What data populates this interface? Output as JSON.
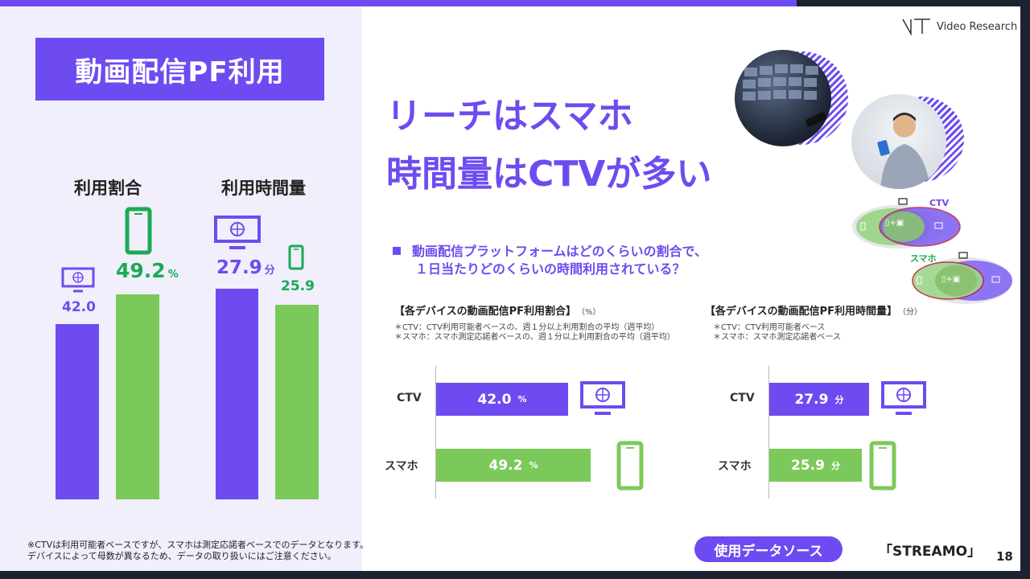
{
  "slide": {
    "title": "動画配信PF利用",
    "logo_text": "Video Research",
    "headline_line1": "リーチはスマホ",
    "headline_line2": "時間量はCTVが多い",
    "page_number": "18"
  },
  "left_chart": {
    "title_usage": "利用割合",
    "title_time": "利用時間量",
    "ctv_rate": "42.0",
    "smartphone_rate": "49.2",
    "rate_unit": "%",
    "ctv_minutes": "27.9",
    "minutes_unit": "分",
    "smartphone_minutes": "25.9"
  },
  "question": {
    "line1": "動画配信プラットフォームはどのくらいの割合で、",
    "line2": "１日当たりどのくらいの時間利用されている？"
  },
  "venn": {
    "ctv_label": "CTV",
    "smartphone_label": "スマホ",
    "overlap_label": "▯+▣"
  },
  "chart_data": [
    {
      "type": "bar",
      "title": "【各デバイスの動画配信PF利用割合】",
      "unit_note": "（%）",
      "notes": [
        "＊CTV：CTV利用可能者ベースの、週１分以上利用割合の平均（週平均）",
        "＊スマホ：スマホ測定応諾者ベースの、週１分以上利用割合の平均（週平均）"
      ],
      "categories": [
        "CTV",
        "スマホ"
      ],
      "values": [
        42.0,
        49.2
      ],
      "value_unit": "%",
      "orientation": "horizontal"
    },
    {
      "type": "bar",
      "title": "【各デバイスの動画配信PF利用時間量】",
      "unit_note": "（分）",
      "notes": [
        "＊CTV：CTV利用可能者ベース",
        "＊スマホ：スマホ測定応諾者ベース"
      ],
      "categories": [
        "CTV",
        "スマホ"
      ],
      "values": [
        27.9,
        25.9
      ],
      "value_unit": "分",
      "orientation": "horizontal"
    }
  ],
  "footer": {
    "note_line1": "※CTVは利用可能者ベースですが、スマホは測定応諾者ベースでのデータとなります。",
    "note_line2": "デバイスによって母数が異なるため、データの取り扱いにはご注意ください。",
    "source_button": "使用データソース",
    "source_name": "「STREAMO」"
  },
  "colors": {
    "primary": "#6e4bf0",
    "green": "#7cc95b",
    "green_text": "#1aaa54",
    "dark": "#1d2230"
  }
}
